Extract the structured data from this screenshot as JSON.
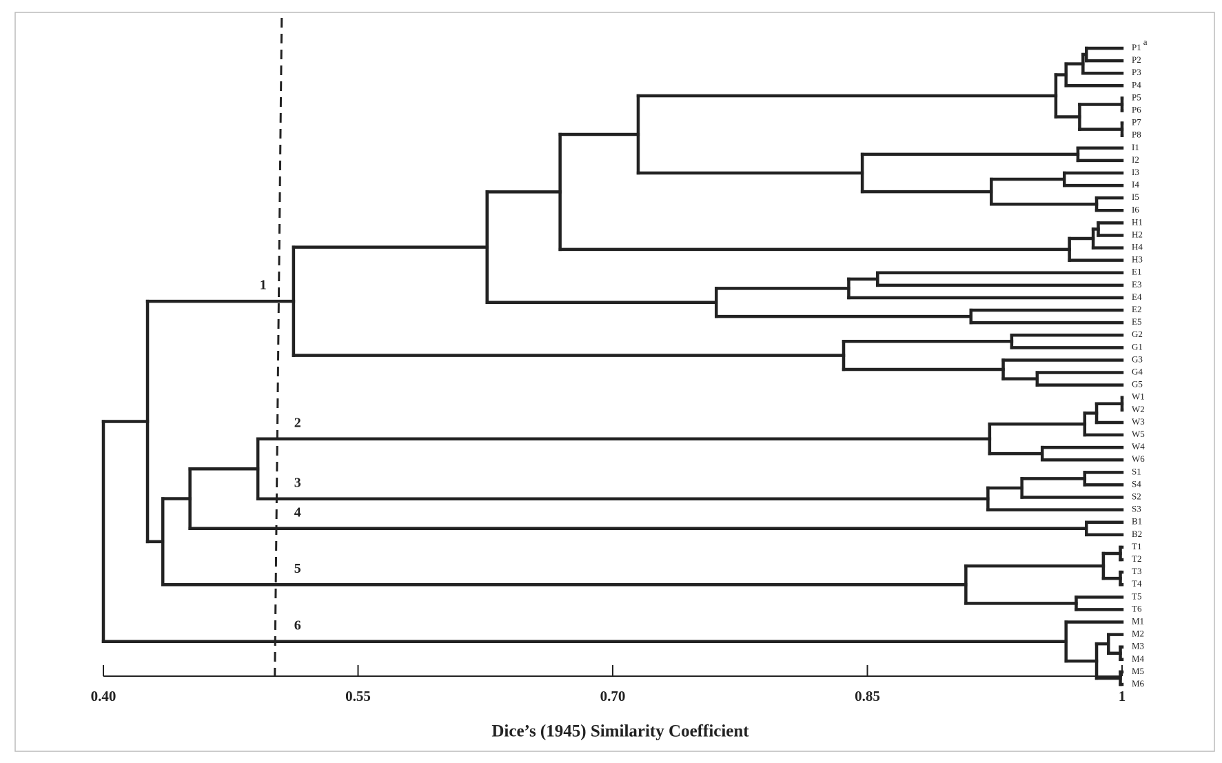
{
  "chart_data": {
    "type": "dendrogram",
    "x_label": "Dice’s (1945) Similarity Coefficient",
    "xlim": [
      0.4,
      1
    ],
    "xticks": [
      {
        "value": 0.4,
        "label": "0.40"
      },
      0.55,
      {
        "value": 0.7,
        "label": "0.70"
      },
      0.85,
      1
    ],
    "cutoff": 0.503,
    "note_mark": "a",
    "cluster_labels": [
      "1",
      "2",
      "3",
      "4",
      "5",
      "6"
    ],
    "color": "#222222",
    "tree": {
      "similarity": 0.4,
      "children": [
        {
          "similarity": 0.426,
          "children": [
            {
              "similarity": 0.512,
              "children": [
                {
                  "similarity": 0.626,
                  "children": [
                    {
                      "similarity": 0.669,
                      "children": [
                        {
                          "similarity": 0.715,
                          "children": [
                            {
                              "similarity": 0.961,
                              "children": [
                                {
                                  "similarity": 0.967,
                                  "children": [
                                    {
                                      "similarity": 0.977,
                                      "children": [
                                        {
                                          "similarity": 0.979,
                                          "children": [
                                            {
                                              "label": "P1"
                                            },
                                            {
                                              "label": "P2"
                                            }
                                          ]
                                        },
                                        {
                                          "label": "P3"
                                        }
                                      ]
                                    },
                                    {
                                      "label": "P4"
                                    }
                                  ]
                                },
                                {
                                  "similarity": 0.975,
                                  "children": [
                                    {
                                      "similarity": 1,
                                      "children": [
                                        {
                                          "label": "P5"
                                        },
                                        {
                                          "label": "P6"
                                        }
                                      ]
                                    },
                                    {
                                      "similarity": 1,
                                      "children": [
                                        {
                                          "label": "P7"
                                        },
                                        {
                                          "label": "P8"
                                        }
                                      ]
                                    }
                                  ]
                                }
                              ]
                            },
                            {
                              "similarity": 0.847,
                              "children": [
                                {
                                  "similarity": 0.974,
                                  "children": [
                                    {
                                      "label": "I1"
                                    },
                                    {
                                      "label": "I2"
                                    }
                                  ]
                                },
                                {
                                  "similarity": 0.923,
                                  "children": [
                                    {
                                      "similarity": 0.966,
                                      "children": [
                                        {
                                          "label": "I3"
                                        },
                                        {
                                          "label": "I4"
                                        }
                                      ]
                                    },
                                    {
                                      "similarity": 0.985,
                                      "children": [
                                        {
                                          "label": "I5"
                                        },
                                        {
                                          "label": "I6"
                                        }
                                      ]
                                    }
                                  ]
                                }
                              ]
                            }
                          ]
                        },
                        {
                          "similarity": 0.969,
                          "children": [
                            {
                              "similarity": 0.983,
                              "children": [
                                {
                                  "similarity": 0.986,
                                  "children": [
                                    {
                                      "label": "H1"
                                    },
                                    {
                                      "label": "H2"
                                    }
                                  ]
                                },
                                {
                                  "label": "H4"
                                }
                              ]
                            },
                            {
                              "label": "H3"
                            }
                          ]
                        }
                      ]
                    },
                    {
                      "similarity": 0.761,
                      "children": [
                        {
                          "similarity": 0.839,
                          "children": [
                            {
                              "similarity": 0.856,
                              "children": [
                                {
                                  "label": "E1"
                                },
                                {
                                  "label": "E3"
                                }
                              ]
                            },
                            {
                              "label": "E4"
                            }
                          ]
                        },
                        {
                          "similarity": 0.911,
                          "children": [
                            {
                              "label": "E2"
                            },
                            {
                              "label": "E5"
                            }
                          ]
                        }
                      ]
                    }
                  ]
                },
                {
                  "similarity": 0.836,
                  "children": [
                    {
                      "similarity": 0.935,
                      "children": [
                        {
                          "label": "G2"
                        },
                        {
                          "label": "G1"
                        }
                      ]
                    },
                    {
                      "similarity": 0.93,
                      "children": [
                        {
                          "label": "G3"
                        },
                        {
                          "similarity": 0.95,
                          "children": [
                            {
                              "label": "G4"
                            },
                            {
                              "label": "G5"
                            }
                          ]
                        }
                      ]
                    }
                  ]
                }
              ]
            },
            {
              "similarity": 0.435,
              "children": [
                {
                  "similarity": 0.451,
                  "children": [
                    {
                      "similarity": 0.491,
                      "children": [
                        {
                          "similarity": 0.922,
                          "children": [
                            {
                              "similarity": 0.978,
                              "children": [
                                {
                                  "similarity": 0.985,
                                  "children": [
                                    {
                                      "similarity": 1,
                                      "children": [
                                        {
                                          "label": "W1"
                                        },
                                        {
                                          "label": "W2"
                                        }
                                      ]
                                    },
                                    {
                                      "label": "W3"
                                    }
                                  ]
                                },
                                {
                                  "label": "W5"
                                }
                              ]
                            },
                            {
                              "similarity": 0.953,
                              "children": [
                                {
                                  "label": "W4"
                                },
                                {
                                  "label": "W6"
                                }
                              ]
                            }
                          ]
                        },
                        {
                          "similarity": 0.921,
                          "children": [
                            {
                              "similarity": 0.941,
                              "children": [
                                {
                                  "similarity": 0.978,
                                  "children": [
                                    {
                                      "label": "S1"
                                    },
                                    {
                                      "label": "S4"
                                    }
                                  ]
                                },
                                {
                                  "label": "S2"
                                }
                              ]
                            },
                            {
                              "label": "S3"
                            }
                          ]
                        }
                      ]
                    },
                    {
                      "similarity": 0.979,
                      "children": [
                        {
                          "label": "B1"
                        },
                        {
                          "label": "B2"
                        }
                      ]
                    }
                  ]
                },
                {
                  "similarity": 0.908,
                  "children": [
                    {
                      "similarity": 0.989,
                      "children": [
                        {
                          "similarity": 0.999,
                          "children": [
                            {
                              "label": "T1"
                            },
                            {
                              "label": "T2"
                            }
                          ]
                        },
                        {
                          "similarity": 0.999,
                          "children": [
                            {
                              "label": "T3"
                            },
                            {
                              "label": "T4"
                            }
                          ]
                        }
                      ]
                    },
                    {
                      "similarity": 0.973,
                      "children": [
                        {
                          "label": "T5"
                        },
                        {
                          "label": "T6"
                        }
                      ]
                    }
                  ]
                }
              ]
            }
          ]
        },
        {
          "similarity": 0.967,
          "children": [
            {
              "label": "M1"
            },
            {
              "similarity": 0.985,
              "children": [
                {
                  "similarity": 0.992,
                  "children": [
                    {
                      "label": "M2"
                    },
                    {
                      "similarity": 0.999,
                      "children": [
                        {
                          "label": "M3"
                        },
                        {
                          "label": "M4"
                        }
                      ]
                    }
                  ]
                },
                {
                  "similarity": 0.999,
                  "children": [
                    {
                      "label": "M5"
                    },
                    {
                      "label": "M6"
                    }
                  ]
                }
              ]
            }
          ]
        }
      ]
    }
  }
}
